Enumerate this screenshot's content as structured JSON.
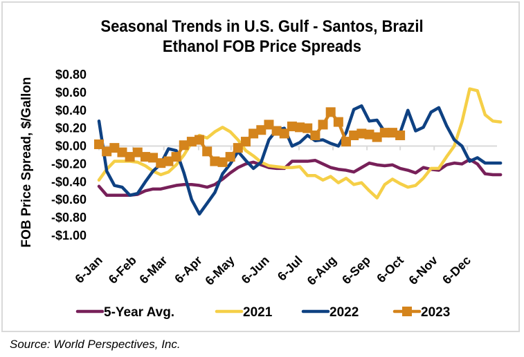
{
  "chart_data": {
    "type": "line",
    "title": "Seasonal Trends in U.S. Gulf - Santos, Brazil Ethanol FOB Price Spreads",
    "title_lines": [
      "Seasonal Trends in U.S. Gulf - Santos, Brazil",
      "Ethanol FOB Price Spreads"
    ],
    "xlabel": "",
    "ylabel": "FOB Price Spread, $/Gallon",
    "ylim": [
      -1.0,
      0.8
    ],
    "yticks": [
      0.8,
      0.6,
      0.4,
      0.2,
      0.0,
      -0.2,
      -0.4,
      -0.6,
      -0.8,
      -1.0
    ],
    "ytick_labels": [
      "$0.80",
      "$0.60",
      "$0.40",
      "$0.20",
      "$0.00",
      "-$0.20",
      "-$0.40",
      "-$0.60",
      "-$0.80",
      "-$1.00"
    ],
    "x_unit": "week of year (0 = 6-Jan)",
    "xlim": [
      0,
      51
    ],
    "xticks": [
      0,
      4.4,
      8.4,
      12.9,
      17.1,
      21.6,
      25.9,
      30.3,
      34.7,
      39.0,
      43.4,
      47.7
    ],
    "xtick_labels": [
      "6-Jan",
      "6-Feb",
      "6-Mar",
      "6-Apr",
      "6-May",
      "6-Jun",
      "6-Jul",
      "6-Aug",
      "6-Sep",
      "6-Oct",
      "6-Nov",
      "6-Dec"
    ],
    "grid": false,
    "legend_position": "bottom",
    "series": [
      {
        "name": "5-Year Avg.",
        "color": "#772059",
        "marker": "none",
        "values": [
          -0.45,
          -0.55,
          -0.55,
          -0.55,
          -0.55,
          -0.54,
          -0.5,
          -0.48,
          -0.48,
          -0.46,
          -0.44,
          -0.43,
          -0.43,
          -0.44,
          -0.46,
          -0.43,
          -0.37,
          -0.3,
          -0.24,
          -0.2,
          -0.18,
          -0.21,
          -0.24,
          -0.25,
          -0.25,
          -0.17,
          -0.17,
          -0.17,
          -0.16,
          -0.2,
          -0.24,
          -0.26,
          -0.27,
          -0.29,
          -0.24,
          -0.19,
          -0.21,
          -0.22,
          -0.21,
          -0.25,
          -0.27,
          -0.3,
          -0.24,
          -0.26,
          -0.27,
          -0.21,
          -0.19,
          -0.2,
          -0.15,
          -0.2,
          -0.31,
          -0.32,
          -0.32
        ]
      },
      {
        "name": "2021",
        "color": "#f5cf47",
        "marker": "none",
        "values": [
          -0.38,
          -0.26,
          -0.17,
          -0.17,
          -0.17,
          -0.18,
          -0.22,
          -0.28,
          -0.32,
          -0.29,
          -0.21,
          -0.1,
          0.04,
          0.12,
          0.09,
          0.16,
          0.21,
          0.16,
          0.07,
          -0.05,
          -0.11,
          -0.18,
          -0.22,
          -0.23,
          -0.24,
          -0.24,
          -0.23,
          -0.33,
          -0.33,
          -0.38,
          -0.34,
          -0.41,
          -0.36,
          -0.43,
          -0.41,
          -0.5,
          -0.58,
          -0.43,
          -0.37,
          -0.42,
          -0.46,
          -0.44,
          -0.36,
          -0.25,
          -0.25,
          -0.12,
          0.0,
          0.27,
          0.64,
          0.62,
          0.35,
          0.28,
          0.27
        ]
      },
      {
        "name": "2022",
        "color": "#0e4182",
        "marker": "none",
        "values": [
          0.28,
          -0.28,
          -0.44,
          -0.46,
          -0.55,
          -0.53,
          -0.4,
          -0.28,
          -0.2,
          -0.03,
          -0.05,
          -0.3,
          -0.6,
          -0.76,
          -0.64,
          -0.52,
          -0.31,
          -0.2,
          -0.06,
          -0.16,
          -0.25,
          -0.18,
          0.07,
          0.18,
          0.2,
          0.0,
          0.04,
          0.12,
          0.06,
          0.07,
          0.03,
          0.0,
          0.15,
          0.41,
          0.45,
          0.28,
          0.29,
          0.16,
          0.14,
          0.15,
          0.4,
          0.17,
          0.21,
          0.38,
          0.43,
          0.23,
          0.07,
          0.0,
          -0.17,
          -0.13,
          -0.19,
          -0.19,
          -0.19
        ]
      },
      {
        "name": "2023",
        "color": "#d4841c",
        "marker": "square",
        "values": [
          0.02,
          -0.06,
          -0.02,
          -0.07,
          -0.12,
          -0.07,
          -0.12,
          -0.13,
          -0.19,
          -0.17,
          -0.12,
          0.01,
          0.05,
          0.07,
          -0.06,
          -0.17,
          -0.18,
          -0.12,
          -0.02,
          0.05,
          0.14,
          0.18,
          0.24,
          0.17,
          0.14,
          0.22,
          0.21,
          0.2,
          0.12,
          0.24,
          0.38,
          0.27,
          0.05,
          0.12,
          0.14,
          0.13,
          0.1,
          0.15,
          0.15,
          0.12
        ]
      }
    ]
  },
  "source": "Source: World Perspectives, Inc."
}
